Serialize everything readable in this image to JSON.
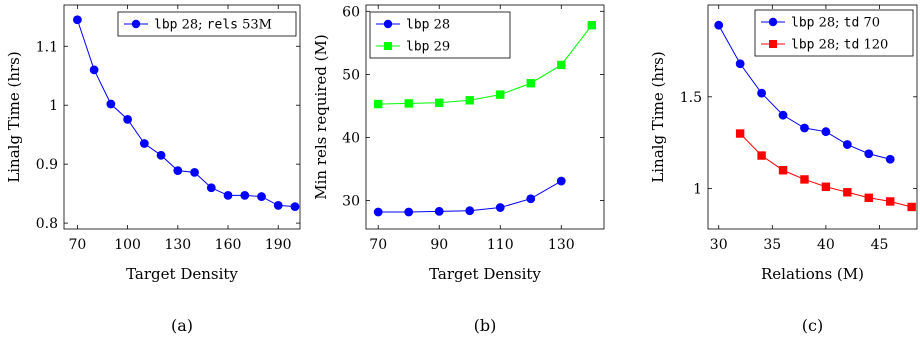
{
  "chart_data": [
    {
      "type": "line",
      "caption": "(a)",
      "xlabel": "Target Density",
      "ylabel": "Linalg Time (hrs)",
      "xlim": [
        62,
        203
      ],
      "ylim": [
        0.79,
        1.17
      ],
      "xticks": [
        70,
        100,
        130,
        160,
        190
      ],
      "yticks": [
        0.8,
        0.9,
        1,
        1.1
      ],
      "ytick_labels": [
        "0.8",
        "0.9",
        "1",
        "1.1"
      ],
      "grid": false,
      "legend_position": "top-right",
      "series": [
        {
          "name_parts": [
            {
              "text": "lbp",
              "font": "mono"
            },
            {
              "text": " 28; ",
              "font": "serif"
            },
            {
              "text": "rels",
              "font": "mono"
            },
            {
              "text": " 53M",
              "font": "serif"
            }
          ],
          "color": "#0000ff",
          "marker": "circle",
          "x": [
            70,
            80,
            90,
            100,
            110,
            120,
            130,
            140,
            150,
            160,
            170,
            180,
            190,
            200
          ],
          "y": [
            1.145,
            1.06,
            1.002,
            0.976,
            0.935,
            0.915,
            0.889,
            0.886,
            0.86,
            0.847,
            0.847,
            0.845,
            0.83,
            0.828
          ]
        }
      ]
    },
    {
      "type": "line",
      "caption": "(b)",
      "xlabel": "Target Density",
      "ylabel": "Min rels required (M)",
      "xlim": [
        66,
        144
      ],
      "ylim": [
        25.5,
        61
      ],
      "xticks": [
        70,
        90,
        110,
        130
      ],
      "yticks": [
        30,
        40,
        50,
        60
      ],
      "ytick_labels": [
        "30",
        "40",
        "50",
        "60"
      ],
      "grid": false,
      "legend_position": "top-left",
      "series": [
        {
          "name_parts": [
            {
              "text": "lbp",
              "font": "mono"
            },
            {
              "text": " 28",
              "font": "serif"
            }
          ],
          "color": "#0000ff",
          "marker": "circle",
          "x": [
            70,
            80,
            90,
            100,
            110,
            120,
            130
          ],
          "y": [
            28.2,
            28.2,
            28.3,
            28.4,
            28.9,
            30.3,
            33.1
          ]
        },
        {
          "name_parts": [
            {
              "text": "lbp",
              "font": "mono"
            },
            {
              "text": " 29",
              "font": "serif"
            }
          ],
          "color": "#00ff00",
          "marker": "square",
          "x": [
            70,
            80,
            90,
            100,
            110,
            120,
            130,
            140
          ],
          "y": [
            45.3,
            45.4,
            45.5,
            45.9,
            46.8,
            48.6,
            51.5,
            57.8
          ]
        }
      ]
    },
    {
      "type": "line",
      "caption": "(c)",
      "xlabel": "Relations (M)",
      "ylabel": "Linalg Time (hrs)",
      "xlim": [
        29,
        48.5
      ],
      "ylim": [
        0.78,
        2.0
      ],
      "xticks": [
        30,
        35,
        40,
        45
      ],
      "yticks": [
        1,
        1.5
      ],
      "ytick_labels": [
        "1",
        "1.5"
      ],
      "grid": false,
      "legend_position": "top-right",
      "series": [
        {
          "name_parts": [
            {
              "text": "lbp",
              "font": "mono"
            },
            {
              "text": " 28; ",
              "font": "serif"
            },
            {
              "text": "td",
              "font": "mono"
            },
            {
              "text": " 70",
              "font": "serif"
            }
          ],
          "color": "#0000ff",
          "marker": "circle",
          "x": [
            30,
            32,
            34,
            36,
            38,
            40,
            42,
            44,
            46
          ],
          "y": [
            1.89,
            1.68,
            1.52,
            1.4,
            1.33,
            1.31,
            1.24,
            1.19,
            1.16
          ]
        },
        {
          "name_parts": [
            {
              "text": "lbp",
              "font": "mono"
            },
            {
              "text": " 28; ",
              "font": "serif"
            },
            {
              "text": "td",
              "font": "mono"
            },
            {
              "text": " 120",
              "font": "serif"
            }
          ],
          "color": "#ff0000",
          "marker": "square",
          "x": [
            32,
            34,
            36,
            38,
            40,
            42,
            44,
            46,
            48
          ],
          "y": [
            1.3,
            1.18,
            1.1,
            1.05,
            1.01,
            0.98,
            0.95,
            0.93,
            0.9
          ]
        }
      ]
    }
  ]
}
